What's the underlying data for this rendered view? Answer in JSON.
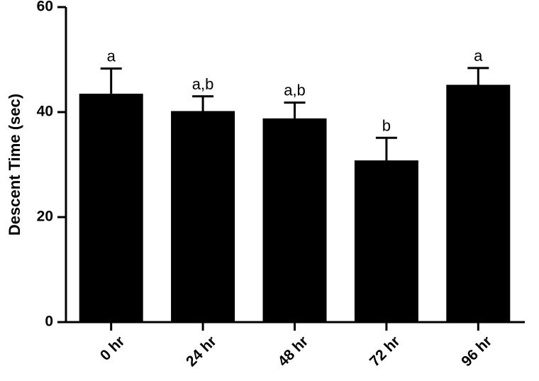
{
  "chart_data": {
    "type": "bar",
    "categories": [
      "0 hr",
      "24 hr",
      "48 hr",
      "72 hr",
      "96 hr"
    ],
    "values": [
      43.5,
      40.2,
      38.8,
      30.8,
      45.2
    ],
    "errors": [
      4.8,
      2.8,
      3.0,
      4.3,
      3.2
    ],
    "significance_labels": [
      "a",
      "a,b",
      "a,b",
      "b",
      "a"
    ],
    "title": "",
    "xlabel": "",
    "ylabel": "Descent Time (sec)",
    "ylim": [
      0,
      60
    ],
    "yticks": [
      0,
      20,
      40,
      60
    ],
    "bar_color": "#000000",
    "grid": false
  }
}
